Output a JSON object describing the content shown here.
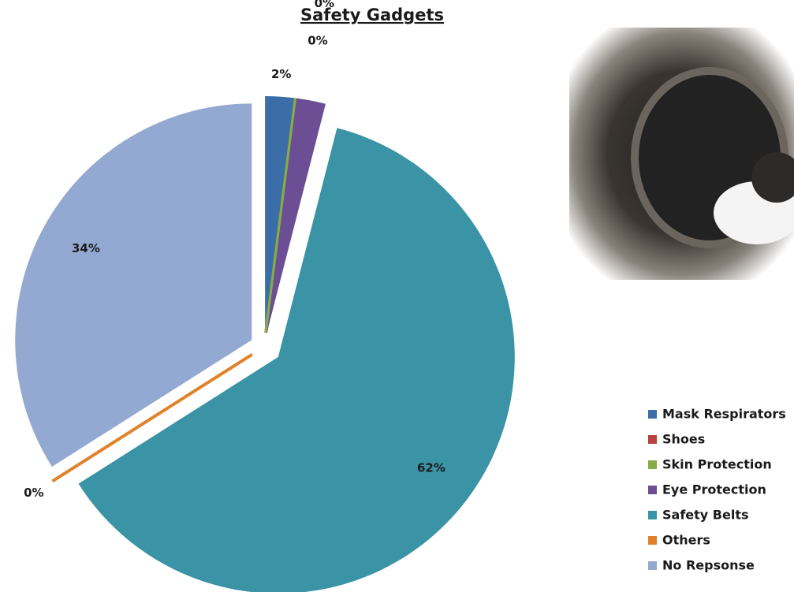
{
  "chart_data": {
    "type": "pie",
    "title": "Safety Gadgets",
    "categories": [
      "Mask Respirators",
      "Shoes",
      "Skin Protection",
      "Eye Protection",
      "Safety Belts",
      "Others",
      "No Repsonse"
    ],
    "values": [
      2,
      0,
      0,
      2,
      62,
      0,
      34
    ],
    "value_labels": [
      "2%",
      "0%",
      "0%",
      "2%",
      "62%",
      "0%",
      "34%"
    ],
    "colors": [
      "#3b6ea6",
      "#b9413f",
      "#86ad47",
      "#6b4e94",
      "#3a94a6",
      "#e0822c",
      "#93a9d2"
    ]
  }
}
